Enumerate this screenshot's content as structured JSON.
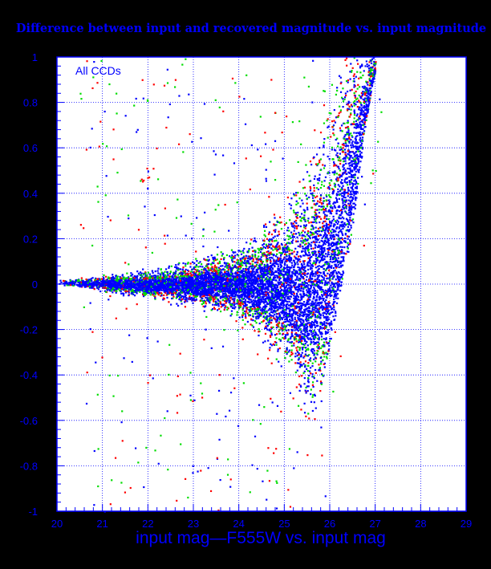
{
  "chart_data": {
    "type": "scatter",
    "title": "Difference between input and recovered magnitude vs. input magnitude",
    "xlabel": "input mag—F555W vs. input mag",
    "ylabel": "",
    "annotation": "All CCDs",
    "xlim": [
      20,
      29
    ],
    "ylim": [
      -1,
      1
    ],
    "xticks": [
      "20",
      "21",
      "22",
      "23",
      "24",
      "25",
      "26",
      "27",
      "28",
      "29"
    ],
    "yticks": [
      "-1",
      "-0.8",
      "-0.6",
      "-0.4",
      "-0.2",
      "0",
      "0.2",
      "0.4",
      "0.6",
      "0.8",
      "1"
    ],
    "grid": true,
    "colors": {
      "background": "#ffffff",
      "page": "#000000",
      "axis": "#0000ff",
      "grid": "#0000ff",
      "text": "#0000ff",
      "series": [
        "#0000ff",
        "#00dd00",
        "#ff0000"
      ]
    },
    "distribution": {
      "description_points": [
        {
          "x": 20.0,
          "y_center": 0.01,
          "y_spread": 0.01
        },
        {
          "x": 21.0,
          "y_center": 0.005,
          "y_spread": 0.03
        },
        {
          "x": 22.0,
          "y_center": 0.0,
          "y_spread": 0.05
        },
        {
          "x": 23.0,
          "y_center": 0.0,
          "y_spread": 0.08
        },
        {
          "x": 24.0,
          "y_center": 0.0,
          "y_spread": 0.13
        },
        {
          "x": 24.5,
          "y_center": -0.01,
          "y_spread": 0.2
        },
        {
          "x": 25.0,
          "y_center": -0.03,
          "y_spread": 0.3
        },
        {
          "x": 25.5,
          "y_center": -0.05,
          "y_spread": 0.45
        },
        {
          "x": 26.0,
          "y_center": 0.05,
          "y_spread": 0.55
        },
        {
          "x": 26.5,
          "y_center": 0.4,
          "y_spread": 0.6
        },
        {
          "x": 27.0,
          "y_center": 0.9,
          "y_spread": 0.1
        }
      ],
      "faint_limit": [
        {
          "y": -0.6,
          "x": 25.6
        },
        {
          "y": -0.3,
          "x": 25.9
        },
        {
          "y": 0.0,
          "x": 26.2
        },
        {
          "x": 26.4,
          "y": 0.2
        },
        {
          "x": 26.6,
          "y": 0.5
        },
        {
          "x": 26.8,
          "y": 0.8
        },
        {
          "x": 27.0,
          "y": 1.0
        }
      ]
    }
  }
}
